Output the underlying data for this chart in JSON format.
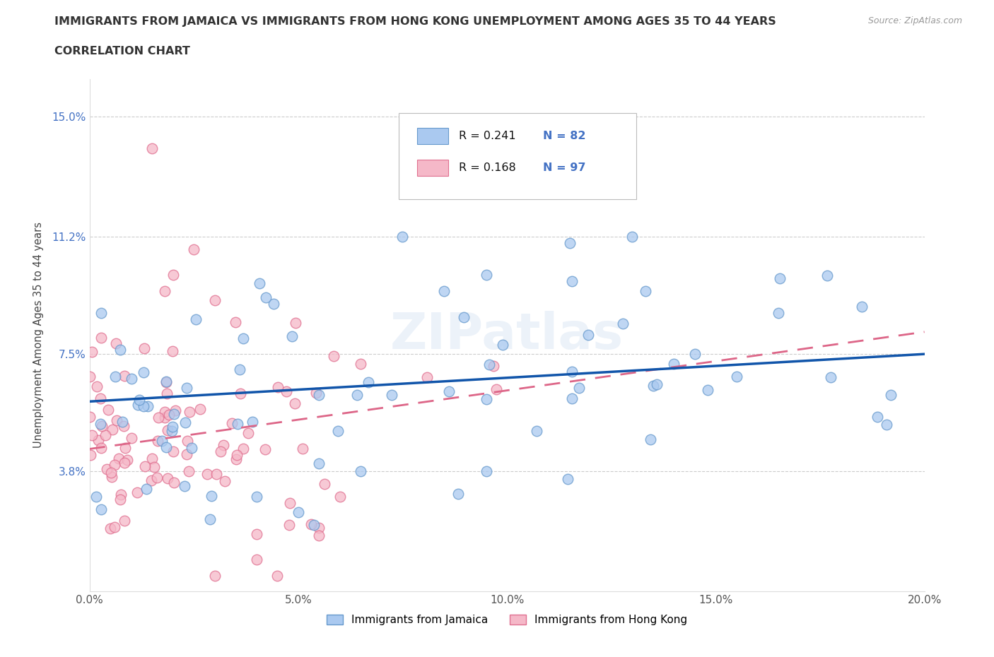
{
  "title_line1": "IMMIGRANTS FROM JAMAICA VS IMMIGRANTS FROM HONG KONG UNEMPLOYMENT AMONG AGES 35 TO 44 YEARS",
  "title_line2": "CORRELATION CHART",
  "source_text": "Source: ZipAtlas.com",
  "ylabel": "Unemployment Among Ages 35 to 44 years",
  "xlim": [
    0.0,
    0.2
  ],
  "ylim": [
    0.0,
    0.162
  ],
  "yticks": [
    0.038,
    0.075,
    0.112,
    0.15
  ],
  "ytick_labels": [
    "3.8%",
    "7.5%",
    "11.2%",
    "15.0%"
  ],
  "xticks": [
    0.0,
    0.05,
    0.1,
    0.15,
    0.2
  ],
  "xtick_labels": [
    "0.0%",
    "5.0%",
    "10.0%",
    "15.0%",
    "20.0%"
  ],
  "jamaica_color": "#aac9f0",
  "jamaica_edge_color": "#6699cc",
  "hk_color": "#f5b8c8",
  "hk_edge_color": "#e07090",
  "jamaica_line_color": "#1155aa",
  "hk_line_color": "#dd6688",
  "legend_label1": "Immigrants from Jamaica",
  "legend_label2": "Immigrants from Hong Kong",
  "watermark": "ZIPatlas",
  "title_color": "#333333",
  "tick_color_y": "#4472c4",
  "tick_color_x": "#555555"
}
